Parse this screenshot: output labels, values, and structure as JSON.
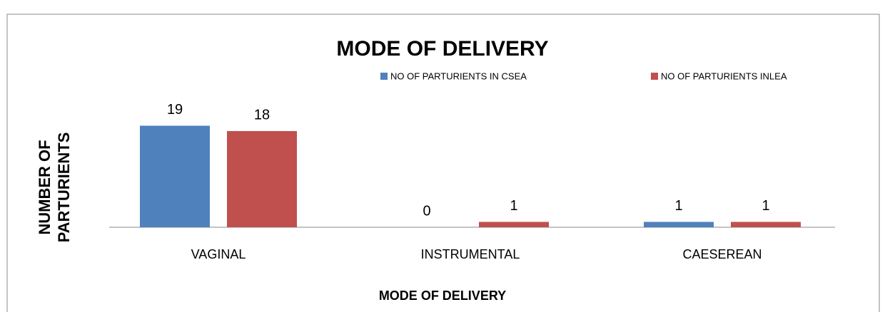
{
  "chart_data": {
    "type": "bar",
    "title": "MODE OF DELIVERY",
    "x_label": "MODE OF DELIVERY",
    "y_label": "NUMBER OF PARTURIENTS",
    "categories": [
      "VAGINAL",
      "INSTRUMENTAL",
      "CAESEREAN"
    ],
    "series": [
      {
        "name": "NO OF PARTURIENTS IN CSEA",
        "color": "#4f81bd",
        "values": [
          19,
          0,
          1
        ]
      },
      {
        "name": "NO OF PARTURIENTS INLEA",
        "color": "#c0504d",
        "values": [
          18,
          1,
          1
        ]
      }
    ],
    "ylim": [
      0,
      20
    ]
  }
}
